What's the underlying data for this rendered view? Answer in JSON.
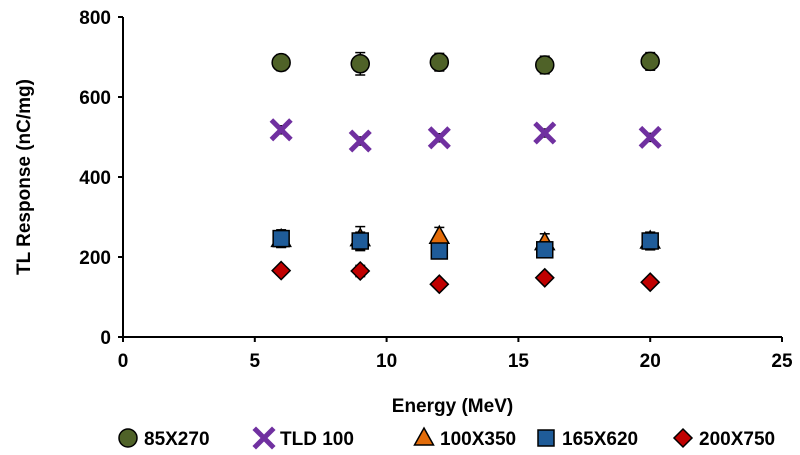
{
  "chart_data": {
    "type": "scatter",
    "xlabel": "Energy (MeV)",
    "ylabel": "TL Response (nC/mg)",
    "xlim": [
      0,
      25
    ],
    "ylim": [
      0,
      800
    ],
    "xticks": [
      "0",
      "5",
      "10",
      "15",
      "20",
      "25"
    ],
    "yticks": [
      "0",
      "200",
      "400",
      "600",
      "800"
    ],
    "grid": false,
    "legend_position": "bottom",
    "series": [
      {
        "name": "85X270",
        "marker": "circle",
        "color": "#4f6228",
        "x": [
          6,
          9,
          12,
          16,
          20
        ],
        "y": [
          686,
          683,
          687,
          680,
          689
        ],
        "err": [
          20,
          28,
          22,
          22,
          22
        ]
      },
      {
        "name": "TLD 100",
        "marker": "x",
        "color": "#7030a0",
        "x": [
          6,
          9,
          12,
          16,
          20
        ],
        "y": [
          518,
          490,
          498,
          510,
          499
        ],
        "err": [
          10,
          10,
          10,
          10,
          10
        ]
      },
      {
        "name": "100X350",
        "marker": "triangle",
        "color": "#e36c09",
        "x": [
          6,
          9,
          12,
          16,
          20
        ],
        "y": [
          244,
          246,
          252,
          236,
          240
        ],
        "err": [
          20,
          30,
          22,
          22,
          22
        ]
      },
      {
        "name": "165X620",
        "marker": "square",
        "color": "#1f5c99",
        "x": [
          6,
          9,
          12,
          16,
          20
        ],
        "y": [
          246,
          240,
          215,
          218,
          240
        ],
        "err": [
          22,
          22,
          0,
          0,
          22
        ]
      },
      {
        "name": "200X750",
        "marker": "diamond",
        "color": "#c00000",
        "x": [
          6,
          9,
          12,
          16,
          20
        ],
        "y": [
          166,
          165,
          132,
          148,
          137
        ],
        "err": [
          8,
          14,
          0,
          0,
          0
        ]
      }
    ]
  }
}
